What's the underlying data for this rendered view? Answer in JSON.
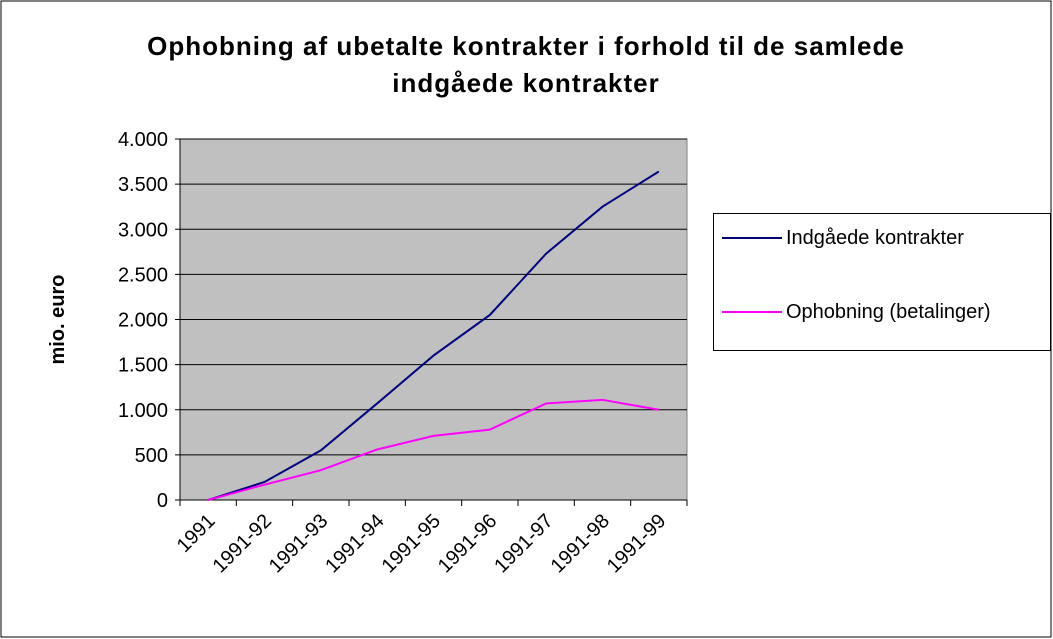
{
  "chart_data": {
    "type": "line",
    "title": "Ophobning af ubetalte kontrakter i forhold til de samlede indgåede kontrakter",
    "y_label": "mio. euro",
    "categories": [
      "1991",
      "1991-92",
      "1991-93",
      "1991-94",
      "1991-95",
      "1991-96",
      "1991-97",
      "1991-98",
      "1991-99"
    ],
    "series": [
      {
        "name": "Indgåede kontrakter",
        "color": "#000080",
        "values": [
          0,
          200,
          550,
          1070,
          1600,
          2050,
          2730,
          3250,
          3640
        ]
      },
      {
        "name": "Ophobning (betalinger)",
        "color": "#ff00ff",
        "values": [
          0,
          170,
          330,
          560,
          710,
          780,
          1070,
          1110,
          1000
        ]
      }
    ],
    "ylim": [
      0,
      4000
    ],
    "yticks": [
      0,
      500,
      {
        "value": 1000,
        "label": "1.000"
      },
      {
        "value": 1500,
        "label": "1.500"
      },
      {
        "value": 2000,
        "label": "2.000"
      },
      {
        "value": 2500,
        "label": "2.500"
      },
      {
        "value": 3000,
        "label": "3.000"
      },
      {
        "value": 3500,
        "label": "3.500"
      },
      {
        "value": 4000,
        "label": "4.000"
      }
    ],
    "grid": true,
    "legend": "right",
    "plot_background": "#c0c0c0"
  }
}
